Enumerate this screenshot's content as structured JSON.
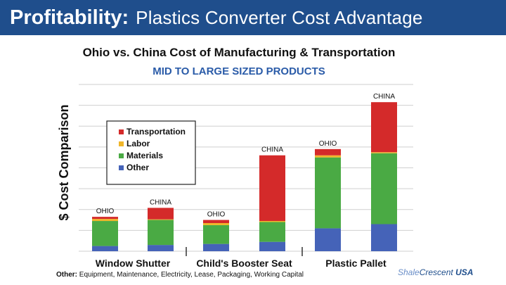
{
  "slide": {
    "title_bold": "Profitability:",
    "title_rest": "Plastics Converter Cost Advantage"
  },
  "footnote": {
    "label": "Other:",
    "text": " Equipment, Maintenance, Electricity, Lease, Packaging, Working Capital"
  },
  "logo": {
    "part1": "Shale",
    "part2": "Crescent",
    "part3": "USA"
  },
  "colors": {
    "header": "#1f4e8c",
    "transportation": "#d42a2a",
    "labor": "#f0b62a",
    "materials": "#4aaa44",
    "other": "#4563b8",
    "grid": "#cfcfcf"
  },
  "chart_data": {
    "type": "bar",
    "stacked": true,
    "title": "Ohio vs. China Cost of Manufacturing & Transportation",
    "subtitle": "MID TO LARGE SIZED PRODUCTS",
    "ylabel": "$ Cost Comparison",
    "xlabel": "",
    "ylim": [
      0,
      8
    ],
    "grid": true,
    "legend_position": "upper-left",
    "groups": [
      "Window Shutter",
      "Child's Booster Seat",
      "Plastic Pallet"
    ],
    "bars": [
      {
        "group": "Window Shutter",
        "label": "OHIO"
      },
      {
        "group": "Window Shutter",
        "label": "CHINA"
      },
      {
        "group": "Child's Booster Seat",
        "label": "OHIO"
      },
      {
        "group": "Child's Booster Seat",
        "label": "CHINA"
      },
      {
        "group": "Plastic Pallet",
        "label": "OHIO"
      },
      {
        "group": "Plastic Pallet",
        "label": "CHINA"
      }
    ],
    "series": [
      {
        "name": "Other",
        "color": "#4563b8",
        "values": [
          0.25,
          0.3,
          0.35,
          0.45,
          1.1,
          1.3
        ]
      },
      {
        "name": "Materials",
        "color": "#4aaa44",
        "values": [
          1.2,
          1.2,
          0.9,
          0.95,
          3.4,
          3.4
        ]
      },
      {
        "name": "Labor",
        "color": "#f0b62a",
        "values": [
          0.1,
          0.03,
          0.1,
          0.05,
          0.1,
          0.05
        ]
      },
      {
        "name": "Transportation",
        "color": "#d42a2a",
        "values": [
          0.1,
          0.55,
          0.15,
          3.15,
          0.3,
          2.4
        ]
      }
    ],
    "legend": [
      "Transportation",
      "Labor",
      "Materials",
      "Other"
    ]
  }
}
